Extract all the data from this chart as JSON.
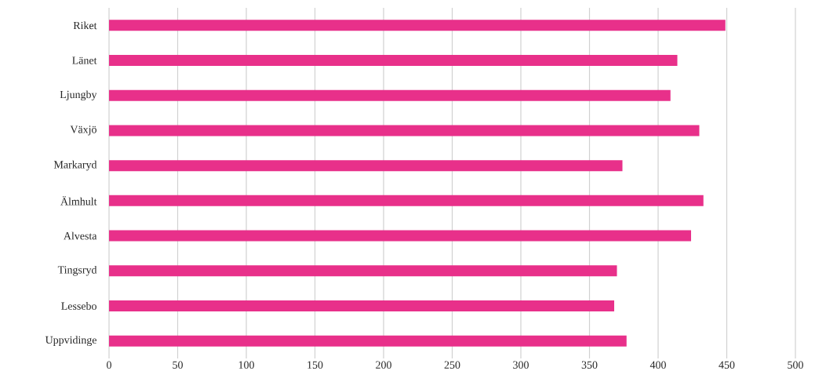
{
  "chart_data": {
    "type": "bar",
    "orientation": "horizontal",
    "categories": [
      "Riket",
      "Länet",
      "Ljungby",
      "Växjö",
      "Markaryd",
      "Älmhult",
      "Alvesta",
      "Tingsryd",
      "Lessebo",
      "Uppvidinge"
    ],
    "values": [
      449,
      414,
      409,
      430,
      374,
      433,
      424,
      370,
      368,
      377
    ],
    "color": "#e8308a",
    "xlim": [
      0,
      500
    ],
    "xticks": [
      0,
      50,
      100,
      150,
      200,
      250,
      300,
      350,
      400,
      450,
      500
    ],
    "grid": "x"
  }
}
